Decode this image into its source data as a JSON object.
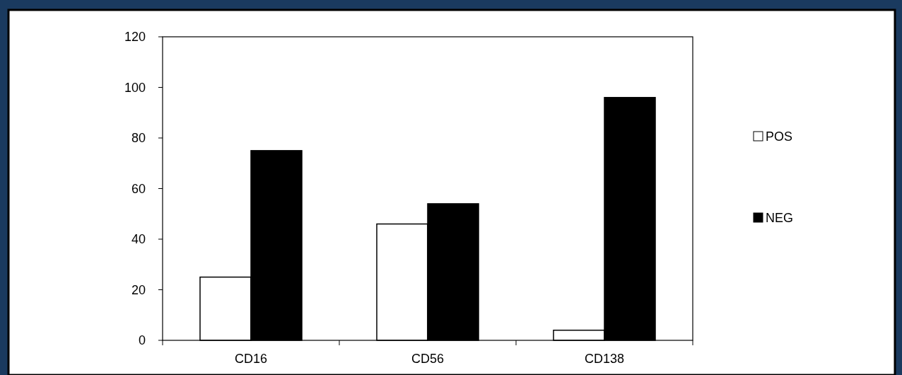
{
  "chart_data": {
    "type": "bar",
    "categories": [
      "CD16",
      "CD56",
      "CD138"
    ],
    "series": [
      {
        "name": "POS",
        "color": "#ffffff",
        "values": [
          25,
          46,
          4
        ]
      },
      {
        "name": "NEG",
        "color": "#000000",
        "values": [
          75,
          54,
          96
        ]
      }
    ],
    "ylim": [
      0,
      120
    ],
    "yticks": [
      0,
      20,
      40,
      60,
      80,
      100,
      120
    ],
    "grid": false,
    "legend": "right"
  }
}
